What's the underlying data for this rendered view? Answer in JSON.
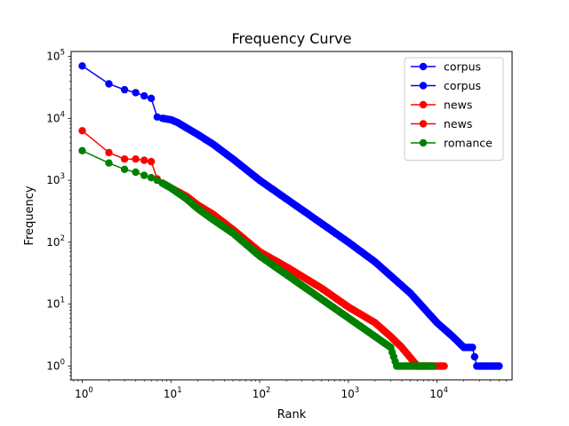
{
  "chart_data": {
    "type": "line",
    "title": "Frequency Curve",
    "xlabel": "Rank",
    "ylabel": "Frequency",
    "xscale": "log",
    "yscale": "log",
    "xlim": [
      0.75,
      70000
    ],
    "ylim": [
      0.6,
      120000
    ],
    "x_ticks": [
      {
        "value": 1,
        "base": "10",
        "exp": "0"
      },
      {
        "value": 10,
        "base": "10",
        "exp": "1"
      },
      {
        "value": 100,
        "base": "10",
        "exp": "2"
      },
      {
        "value": 1000,
        "base": "10",
        "exp": "3"
      },
      {
        "value": 10000,
        "base": "10",
        "exp": "4"
      }
    ],
    "y_ticks": [
      {
        "value": 1,
        "base": "10",
        "exp": "0"
      },
      {
        "value": 10,
        "base": "10",
        "exp": "1"
      },
      {
        "value": 100,
        "base": "10",
        "exp": "2"
      },
      {
        "value": 1000,
        "base": "10",
        "exp": "3"
      },
      {
        "value": 10000,
        "base": "10",
        "exp": "4"
      },
      {
        "value": 100000,
        "base": "10",
        "exp": "5"
      }
    ],
    "grid": false,
    "legend_position": "top-right",
    "series": [
      {
        "name": "corpus",
        "color": "#0000ff",
        "x": [
          1,
          2,
          3,
          4,
          5,
          6,
          7,
          8,
          10,
          12,
          15,
          20,
          30,
          50,
          100,
          200,
          500,
          1000,
          2000,
          5000,
          10000,
          15000,
          20000,
          25000,
          28000,
          30000,
          40000,
          50000
        ],
        "y": [
          70000,
          36000,
          29000,
          26000,
          23000,
          21000,
          10500,
          10000,
          9500,
          8500,
          7000,
          5500,
          3800,
          2200,
          1000,
          500,
          200,
          100,
          48,
          15,
          5,
          3,
          2,
          2,
          1,
          1,
          1,
          1
        ]
      },
      {
        "name": "corpus",
        "color": "#0000ff",
        "x": [],
        "y": []
      },
      {
        "name": "news",
        "color": "#ff0000",
        "x": [
          1,
          2,
          3,
          4,
          5,
          6,
          7,
          8,
          10,
          15,
          20,
          30,
          50,
          100,
          200,
          500,
          1000,
          2000,
          3000,
          4000,
          6000,
          8000,
          10000,
          12000
        ],
        "y": [
          6300,
          2800,
          2200,
          2200,
          2100,
          2000,
          1050,
          900,
          750,
          550,
          400,
          280,
          160,
          70,
          40,
          18,
          9,
          5,
          3,
          2,
          1,
          1,
          1,
          1
        ]
      },
      {
        "name": "news",
        "color": "#ff0000",
        "x": [],
        "y": []
      },
      {
        "name": "romance",
        "color": "#008000",
        "x": [
          1,
          2,
          3,
          4,
          5,
          6,
          7,
          8,
          10,
          15,
          20,
          30,
          50,
          100,
          200,
          500,
          1000,
          2000,
          3000,
          3500,
          5000,
          7000,
          9000
        ],
        "y": [
          3000,
          1900,
          1500,
          1350,
          1200,
          1100,
          1000,
          900,
          750,
          500,
          350,
          230,
          140,
          60,
          30,
          12,
          6,
          3,
          2,
          1,
          1,
          1,
          1
        ]
      }
    ]
  }
}
